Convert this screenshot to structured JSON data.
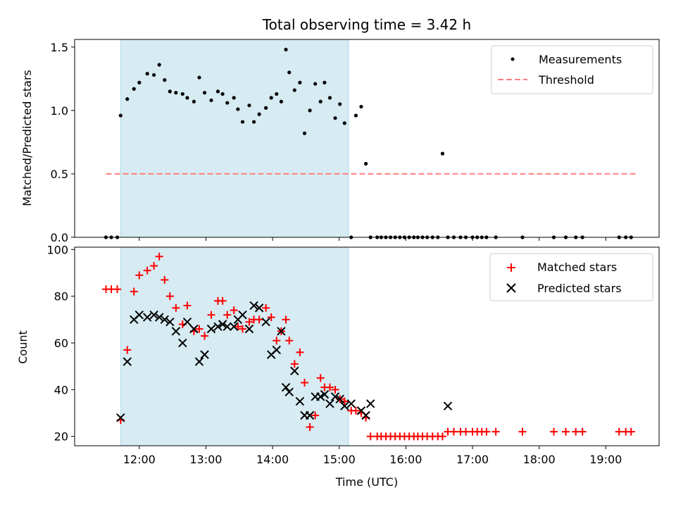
{
  "chart_data": [
    {
      "type": "scatter",
      "title": "Total observing time = 3.42 h",
      "ylabel": "Matched/Predicted stars",
      "xlabel": "",
      "xlim": [
        11.03,
        19.8
      ],
      "ylim": [
        0,
        1.56
      ],
      "yticks": [
        "0.0",
        "0.5",
        "1.0",
        "1.5"
      ],
      "highlight_span": [
        11.72,
        15.14
      ],
      "legend_position": "top-right",
      "threshold": {
        "name": "Threshold",
        "value": 0.5,
        "x_range": [
          11.5,
          19.45
        ],
        "color": "#ff7f7f"
      },
      "series": [
        {
          "name": "Measurements",
          "color": "#000000",
          "x": [
            11.5,
            11.58,
            11.67,
            11.72,
            11.82,
            11.92,
            12.0,
            12.12,
            12.22,
            12.3,
            12.38,
            12.46,
            12.55,
            12.65,
            12.72,
            12.82,
            12.9,
            12.98,
            13.08,
            13.18,
            13.25,
            13.32,
            13.42,
            13.48,
            13.55,
            13.65,
            13.72,
            13.8,
            13.9,
            13.98,
            14.06,
            14.13,
            14.2,
            14.25,
            14.33,
            14.41,
            14.48,
            14.56,
            14.64,
            14.72,
            14.78,
            14.86,
            14.94,
            15.01,
            15.08,
            15.18,
            15.25,
            15.33,
            15.4,
            15.47,
            15.57,
            15.63,
            15.7,
            15.77,
            15.84,
            15.91,
            15.98,
            16.05,
            16.12,
            16.18,
            16.25,
            16.32,
            16.4,
            16.48,
            16.55,
            16.63,
            16.72,
            16.82,
            16.9,
            17.0,
            17.07,
            17.14,
            17.21,
            17.35,
            17.75,
            18.22,
            18.4,
            18.55,
            18.65,
            19.2,
            19.3,
            19.38
          ],
          "y": [
            0,
            0,
            0,
            0.96,
            1.09,
            1.17,
            1.22,
            1.29,
            1.28,
            1.36,
            1.24,
            1.15,
            1.14,
            1.13,
            1.1,
            1.07,
            1.26,
            1.14,
            1.08,
            1.15,
            1.13,
            1.06,
            1.1,
            1.01,
            0.91,
            1.04,
            0.91,
            0.97,
            1.02,
            1.1,
            1.13,
            1.07,
            1.48,
            1.3,
            1.16,
            1.22,
            0.82,
            1.0,
            1.21,
            1.07,
            1.22,
            1.1,
            0.94,
            1.05,
            0.9,
            0,
            0.96,
            1.03,
            0.58,
            0,
            0,
            0,
            0,
            0,
            0,
            0,
            0,
            0,
            0,
            0,
            0,
            0,
            0,
            0,
            0.66,
            0,
            0,
            0,
            0,
            0,
            0,
            0,
            0,
            0,
            0,
            0,
            0,
            0,
            0,
            0,
            0,
            0
          ]
        }
      ]
    },
    {
      "type": "scatter",
      "title": "",
      "ylabel": "Count",
      "xlabel": "Time (UTC)",
      "xlim": [
        11.03,
        19.8
      ],
      "ylim": [
        16,
        101
      ],
      "yticks": [
        "20",
        "40",
        "60",
        "80",
        "100"
      ],
      "xticks": [
        "12:00",
        "13:00",
        "14:00",
        "15:00",
        "16:00",
        "17:00",
        "18:00",
        "19:00"
      ],
      "highlight_span": [
        11.72,
        15.14
      ],
      "legend_position": "top-right",
      "series": [
        {
          "name": "Matched stars",
          "marker": "plus",
          "color": "#ff0000",
          "x": [
            11.5,
            11.58,
            11.67,
            11.72,
            11.82,
            11.92,
            12.0,
            12.12,
            12.22,
            12.3,
            12.38,
            12.46,
            12.55,
            12.65,
            12.72,
            12.82,
            12.9,
            12.98,
            13.08,
            13.18,
            13.25,
            13.32,
            13.42,
            13.48,
            13.55,
            13.65,
            13.72,
            13.8,
            13.9,
            13.98,
            14.06,
            14.13,
            14.2,
            14.25,
            14.33,
            14.41,
            14.48,
            14.56,
            14.64,
            14.72,
            14.78,
            14.86,
            14.94,
            15.01,
            15.08,
            15.18,
            15.25,
            15.33,
            15.4,
            15.47,
            15.57,
            15.63,
            15.7,
            15.77,
            15.84,
            15.91,
            15.98,
            16.05,
            16.12,
            16.18,
            16.25,
            16.32,
            16.4,
            16.48,
            16.55,
            16.63,
            16.72,
            16.82,
            16.9,
            17.0,
            17.07,
            17.14,
            17.21,
            17.35,
            17.75,
            18.22,
            18.4,
            18.55,
            18.65,
            19.2,
            19.3,
            19.38
          ],
          "y": [
            83,
            83,
            83,
            27,
            57,
            82,
            89,
            91,
            93,
            97,
            87,
            80,
            75,
            68,
            76,
            65,
            66,
            63,
            72,
            78,
            78,
            72,
            74,
            67,
            66,
            69,
            70,
            70,
            75,
            71,
            61,
            65,
            70,
            61,
            51,
            56,
            43,
            24,
            29,
            45,
            41,
            41,
            40,
            36,
            35,
            31,
            31,
            30,
            28,
            20,
            20,
            20,
            20,
            20,
            20,
            20,
            20,
            20,
            20,
            20,
            20,
            20,
            20,
            20,
            20,
            22,
            22,
            22,
            22,
            22,
            22,
            22,
            22,
            22,
            22,
            22,
            22,
            22,
            22,
            22,
            22,
            22
          ]
        },
        {
          "name": "Predicted stars",
          "marker": "x",
          "color": "#000000",
          "x": [
            11.72,
            11.82,
            11.92,
            12.0,
            12.12,
            12.22,
            12.3,
            12.38,
            12.46,
            12.55,
            12.65,
            12.72,
            12.82,
            12.9,
            12.98,
            13.08,
            13.18,
            13.25,
            13.32,
            13.42,
            13.48,
            13.55,
            13.65,
            13.72,
            13.8,
            13.9,
            13.98,
            14.06,
            14.13,
            14.2,
            14.25,
            14.33,
            14.41,
            14.48,
            14.56,
            14.64,
            14.72,
            14.78,
            14.86,
            14.94,
            15.01,
            15.08,
            15.18,
            15.33,
            15.4,
            15.47,
            16.63
          ],
          "y": [
            28,
            52,
            70,
            72,
            71,
            72,
            71,
            70,
            69,
            65,
            60,
            69,
            66,
            52,
            55,
            66,
            67,
            68,
            67,
            67,
            70,
            72,
            66,
            76,
            75,
            69,
            55,
            57,
            65,
            41,
            39,
            48,
            35,
            29,
            29,
            37,
            37,
            38,
            34,
            37,
            36,
            33,
            34,
            31,
            29,
            34,
            33
          ]
        }
      ]
    }
  ]
}
